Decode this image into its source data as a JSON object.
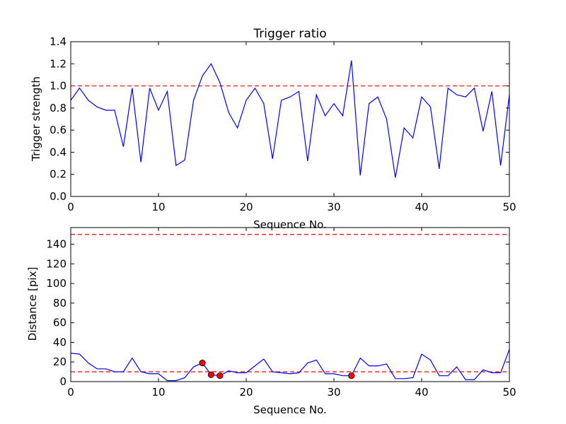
{
  "chart_data": [
    {
      "type": "line",
      "title": "Trigger ratio",
      "xlabel": "Sequence No.",
      "ylabel": "Trigger strength",
      "xlim": [
        0,
        50
      ],
      "ylim": [
        0,
        1.4
      ],
      "xticks": [
        "0",
        "10",
        "20",
        "30",
        "40",
        "50"
      ],
      "yticks": [
        "0.0",
        "0.2",
        "0.4",
        "0.6",
        "0.8",
        "1.0",
        "1.2",
        "1.4"
      ],
      "threshold": 1.0,
      "threshold_color": "#ff0000",
      "line_color": "#0000ff",
      "series": [
        {
          "name": "trigger strength",
          "x": [
            0,
            1,
            2,
            3,
            4,
            5,
            6,
            7,
            8,
            9,
            10,
            11,
            12,
            13,
            14,
            15,
            16,
            17,
            18,
            19,
            20,
            21,
            22,
            23,
            24,
            25,
            26,
            27,
            28,
            29,
            30,
            31,
            32,
            33,
            34,
            35,
            36,
            37,
            38,
            39,
            40,
            41,
            42,
            43,
            44,
            45,
            46,
            47,
            48,
            49,
            50
          ],
          "values": [
            0.87,
            0.98,
            0.87,
            0.81,
            0.78,
            0.78,
            0.45,
            0.98,
            0.31,
            0.98,
            0.78,
            0.95,
            0.28,
            0.33,
            0.87,
            1.09,
            1.2,
            1.03,
            0.76,
            0.62,
            0.87,
            0.98,
            0.84,
            0.34,
            0.87,
            0.9,
            0.95,
            0.32,
            0.92,
            0.73,
            0.84,
            0.73,
            1.23,
            0.19,
            0.84,
            0.9,
            0.7,
            0.17,
            0.62,
            0.53,
            0.9,
            0.81,
            0.25,
            0.98,
            0.92,
            0.9,
            0.98,
            0.59,
            0.95,
            0.28,
            0.92
          ]
        }
      ]
    },
    {
      "type": "line",
      "title": "",
      "xlabel": "Sequence No.",
      "ylabel": "Distance [pix]",
      "xlim": [
        0,
        50
      ],
      "ylim": [
        0,
        157
      ],
      "xticks": [
        "0",
        "10",
        "20",
        "30",
        "40",
        "50"
      ],
      "yticks": [
        "0",
        "20",
        "40",
        "60",
        "80",
        "100",
        "120",
        "140"
      ],
      "thresholds": [
        150,
        10
      ],
      "threshold_color": "#ff0000",
      "line_color": "#0000ff",
      "marker_color": "#ff0000",
      "series": [
        {
          "name": "distance",
          "x": [
            0,
            1,
            2,
            3,
            4,
            5,
            6,
            7,
            8,
            9,
            10,
            11,
            12,
            13,
            14,
            15,
            16,
            17,
            18,
            19,
            20,
            21,
            22,
            23,
            24,
            25,
            26,
            27,
            28,
            29,
            30,
            31,
            32,
            33,
            34,
            35,
            36,
            37,
            38,
            39,
            40,
            41,
            42,
            43,
            44,
            45,
            46,
            47,
            48,
            49,
            50
          ],
          "values": [
            29,
            28,
            19,
            13,
            13,
            10,
            10,
            24,
            10,
            8,
            8,
            1,
            1,
            4,
            15,
            19,
            7,
            6,
            11,
            9,
            9,
            16,
            23,
            10,
            9,
            8,
            9,
            19,
            22,
            8,
            8,
            6,
            6,
            24,
            16,
            16,
            18,
            3,
            3,
            4,
            28,
            22,
            6,
            6,
            15,
            2,
            2,
            12,
            9,
            9,
            33
          ]
        },
        {
          "name": "flagged",
          "x": [
            15,
            16,
            17,
            32
          ],
          "values": [
            19,
            7,
            6,
            6
          ]
        }
      ]
    }
  ]
}
